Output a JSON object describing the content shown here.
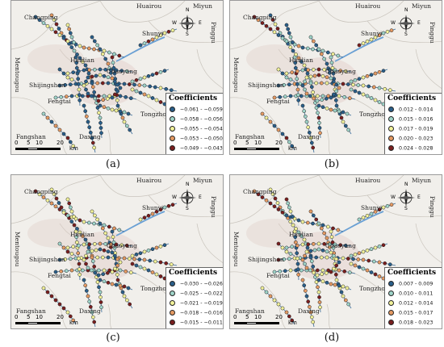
{
  "panels": [
    {
      "id": "a",
      "label": "(a)",
      "legend_title": "Coefficients",
      "legend": [
        {
          "range": "−0.061 - −0.059",
          "color": "#2a5f8a"
        },
        {
          "range": "−0.058 - −0.056",
          "color": "#9fd4c9"
        },
        {
          "range": "−0.055 - −0.054",
          "color": "#f2f29a"
        },
        {
          "range": "−0.053 - −0.050",
          "color": "#e59a63"
        },
        {
          "range": "−0.049 - −0.043",
          "color": "#7a1f1f"
        }
      ],
      "dominant": [
        0.45,
        0.2,
        0.15,
        0.12,
        0.08
      ]
    },
    {
      "id": "b",
      "label": "(b)",
      "legend_title": "Coefficients",
      "legend": [
        {
          "range": "0.012 - 0.014",
          "color": "#2a5f8a"
        },
        {
          "range": "0.015 - 0.016",
          "color": "#9fd4c9"
        },
        {
          "range": "0.017 - 0.019",
          "color": "#f2f29a"
        },
        {
          "range": "0.020 - 0.023",
          "color": "#e59a63"
        },
        {
          "range": "0.024 - 0.028",
          "color": "#7a1f1f"
        }
      ],
      "dominant": [
        0.35,
        0.25,
        0.15,
        0.13,
        0.12
      ]
    },
    {
      "id": "c",
      "label": "(c)",
      "legend_title": "Coefficients",
      "legend": [
        {
          "range": "−0.030 - −0.026",
          "color": "#2a5f8a"
        },
        {
          "range": "−0.025 - −0.022",
          "color": "#9fd4c9"
        },
        {
          "range": "−0.021 - −0.019",
          "color": "#f2f29a"
        },
        {
          "range": "−0.018 - −0.016",
          "color": "#e59a63"
        },
        {
          "range": "−0.015 - −0.011",
          "color": "#7a1f1f"
        }
      ],
      "dominant": [
        0.18,
        0.18,
        0.34,
        0.15,
        0.15
      ]
    },
    {
      "id": "d",
      "label": "(d)",
      "legend_title": "Coefficients",
      "legend": [
        {
          "range": "0.007 - 0.009",
          "color": "#2a5f8a"
        },
        {
          "range": "0.010 - 0.011",
          "color": "#9fd4c9"
        },
        {
          "range": "0.012 - 0.014",
          "color": "#f2f29a"
        },
        {
          "range": "0.015 - 0.017",
          "color": "#e59a63"
        },
        {
          "range": "0.018 - 0.023",
          "color": "#7a1f1f"
        }
      ],
      "dominant": [
        0.2,
        0.25,
        0.25,
        0.18,
        0.12
      ]
    }
  ],
  "places": {
    "huairou": "Huairou",
    "miyun": "Miyun",
    "changping": "Changping",
    "shunyi": "Shunyi",
    "pinggu": "Pinggu",
    "haidian": "Haidian",
    "chaoyang": "Chaoyang",
    "mentougou": "Mentougou",
    "shijingshan": "Shijingshan",
    "fengtai": "Fengtai",
    "tongzhou": "Tongzhou",
    "fangshan": "Fangshan",
    "daxing": "Daxing"
  },
  "scale": {
    "t0": "0",
    "t1": "5",
    "t2": "10",
    "t3": "20",
    "unit": "km"
  },
  "compass": {
    "n": "N",
    "s": "S",
    "e": "E",
    "w": "W"
  },
  "colors": {
    "land": "#f1efeb",
    "boundary": "#c9c4bc",
    "urban": "#e3d2cd",
    "highway": "#6aa0d4"
  }
}
